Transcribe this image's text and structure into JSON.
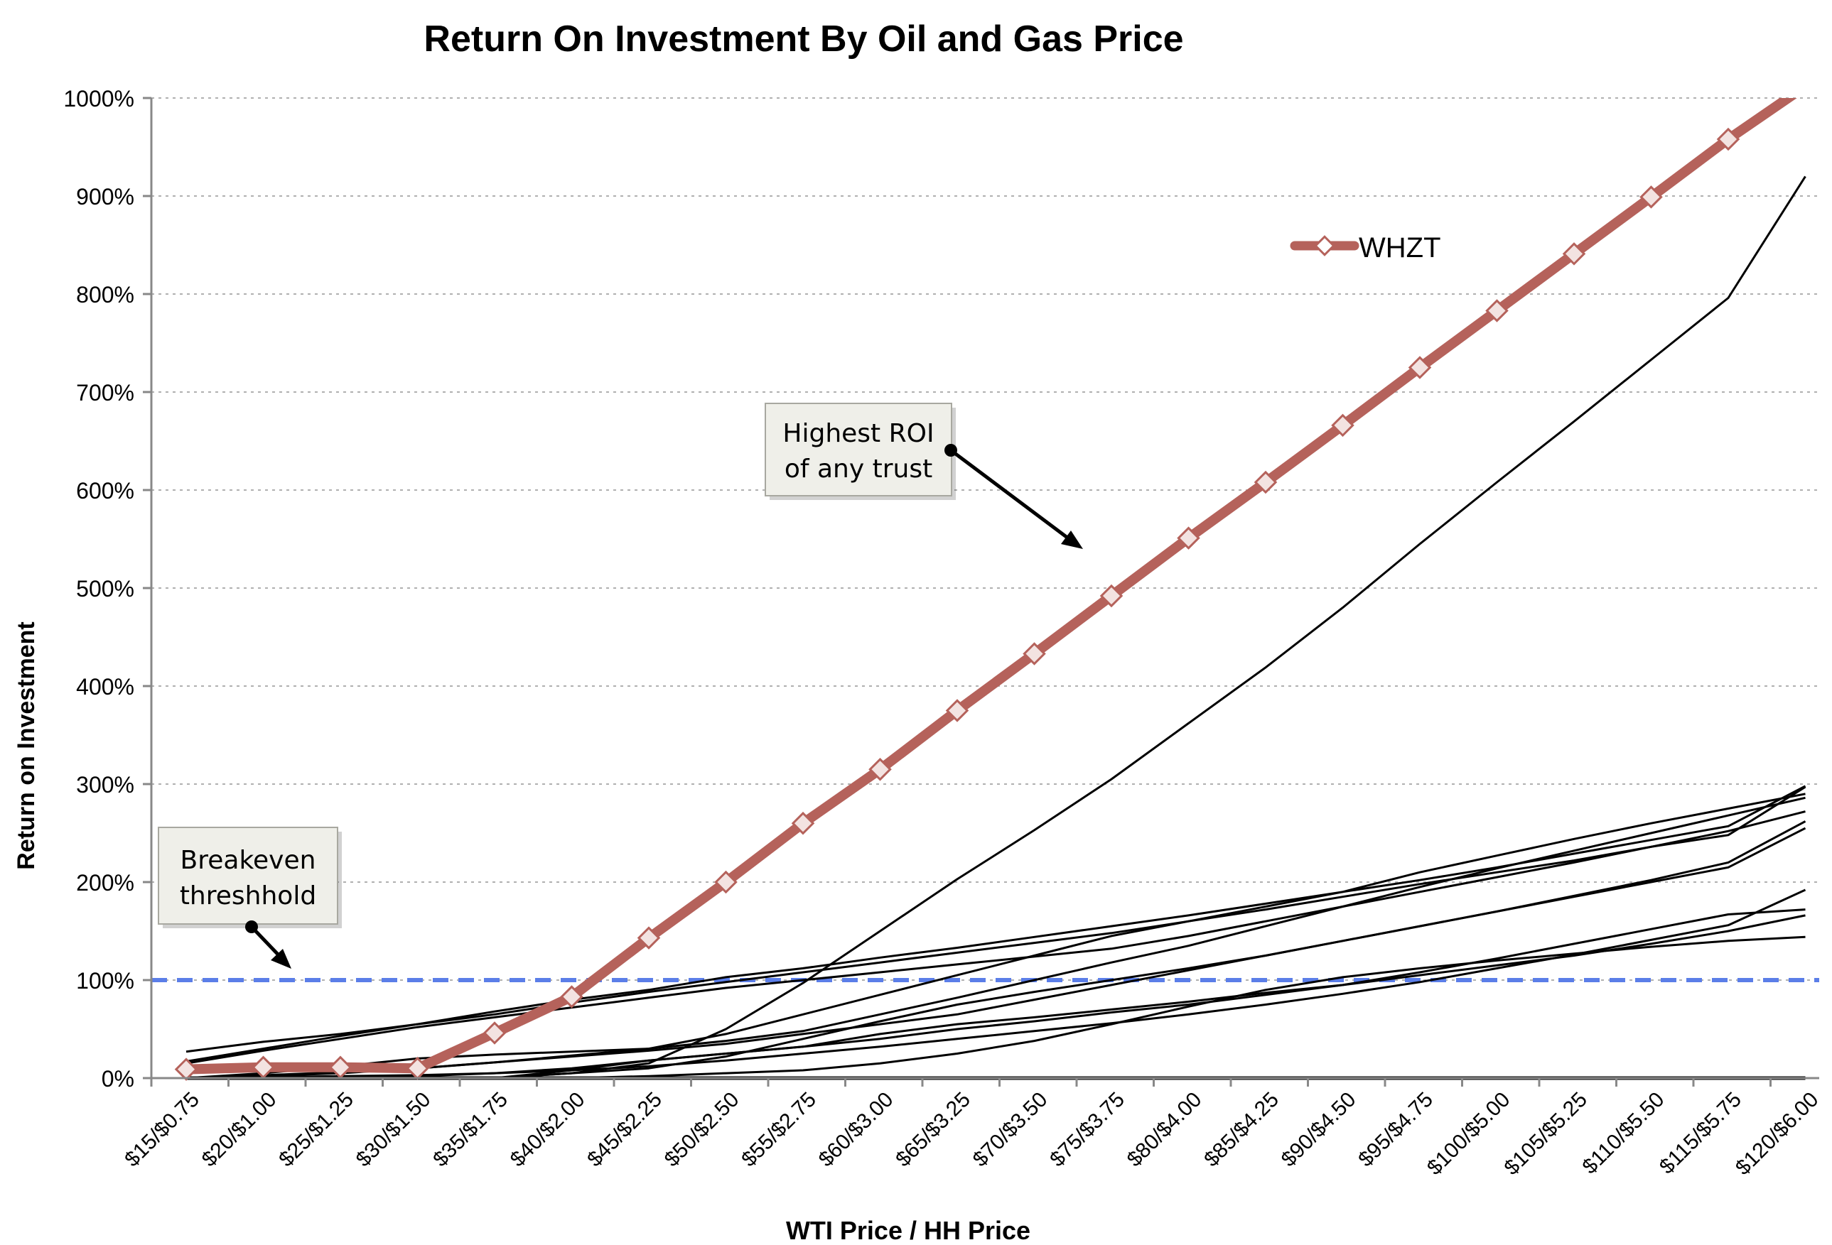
{
  "chart_data": {
    "type": "line",
    "title": "Return On Investment By Oil and Gas Price",
    "xlabel": "WTI Price / HH Price",
    "ylabel": "Return on Investment",
    "categories": [
      "$15/$0.75",
      "$20/$1.00",
      "$25/$1.25",
      "$30/$1.50",
      "$35/$1.75",
      "$40/$2.00",
      "$45/$2.25",
      "$50/$2.50",
      "$55/$2.75",
      "$60/$3.00",
      "$65/$3.25",
      "$70/$3.50",
      "$75/$3.75",
      "$80/$4.00",
      "$85/$4.25",
      "$90/$4.50",
      "$95/$4.75",
      "$100/$5.00",
      "$105/$5.25",
      "$110/$5.50",
      "$115/$5.75",
      "$120/$6.00"
    ],
    "y_ticks": [
      "0%",
      "100%",
      "200%",
      "300%",
      "400%",
      "500%",
      "600%",
      "700%",
      "800%",
      "900%",
      "1000%"
    ],
    "ylim": [
      0,
      1000
    ],
    "grid": true,
    "legend_position": "top-right",
    "highlight_color": "#b5625b",
    "other_series_color": "#000000",
    "threshold_color": "#5b7ee8",
    "breakeven_value": 100,
    "annotations": {
      "highest_roi": [
        "Highest ROI",
        "of any trust"
      ],
      "breakeven": [
        "Breakeven",
        "threshhold"
      ]
    },
    "series": [
      {
        "name": "WHZT",
        "values": [
          9,
          11,
          11,
          10,
          46,
          83,
          143,
          200,
          260,
          315,
          375,
          433,
          492,
          551,
          608,
          666,
          725,
          783,
          841,
          899,
          958,
          1012
        ]
      },
      {
        "values": [
          0,
          0,
          0,
          0,
          0,
          5,
          15,
          50,
          97,
          150,
          203,
          253,
          305,
          362,
          419,
          480,
          545,
          608,
          670,
          733,
          796,
          920
        ]
      },
      {
        "values": [
          27,
          37,
          45,
          55,
          65,
          77,
          88,
          98,
          108,
          118,
          128,
          138,
          148,
          160,
          172,
          185,
          198,
          210,
          222,
          236,
          248,
          297
        ]
      },
      {
        "values": [
          17,
          30,
          43,
          55,
          68,
          80,
          90,
          103,
          112,
          123,
          133,
          144,
          155,
          166,
          178,
          190,
          202,
          215,
          229,
          243,
          257,
          298
        ]
      },
      {
        "values": [
          15,
          28,
          40,
          52,
          62,
          72,
          82,
          92,
          100,
          108,
          116,
          124,
          132,
          145,
          160,
          175,
          190,
          205,
          220,
          236,
          252,
          272
        ]
      },
      {
        "values": [
          0,
          3,
          6,
          10,
          16,
          23,
          30,
          45,
          65,
          85,
          105,
          125,
          145,
          160,
          175,
          190,
          210,
          227,
          244,
          260,
          275,
          290
        ]
      },
      {
        "values": [
          0,
          5,
          12,
          20,
          24,
          27,
          30,
          38,
          48,
          65,
          82,
          100,
          118,
          135,
          155,
          175,
          195,
          214,
          232,
          250,
          268,
          286
        ]
      },
      {
        "values": [
          0,
          2,
          5,
          10,
          16,
          22,
          28,
          35,
          45,
          55,
          65,
          80,
          95,
          110,
          125,
          140,
          155,
          170,
          185,
          200,
          215,
          255
        ]
      },
      {
        "values": [
          0,
          1,
          2,
          3,
          5,
          8,
          12,
          18,
          25,
          32,
          40,
          48,
          56,
          65,
          75,
          86,
          98,
          112,
          126,
          141,
          156,
          192
        ]
      },
      {
        "values": [
          0,
          0,
          0,
          2,
          5,
          10,
          18,
          25,
          32,
          40,
          50,
          58,
          67,
          75,
          85,
          95,
          108,
          122,
          137,
          152,
          167,
          172
        ]
      },
      {
        "values": [
          0,
          0,
          0,
          0,
          0,
          8,
          18,
          25,
          32,
          45,
          55,
          62,
          70,
          78,
          87,
          95,
          105,
          115,
          125,
          137,
          150,
          166
        ]
      },
      {
        "values": [
          0,
          0,
          0,
          0,
          0,
          0,
          2,
          5,
          8,
          15,
          25,
          38,
          55,
          73,
          90,
          103,
          112,
          120,
          127,
          134,
          140,
          144
        ]
      },
      {
        "values": [
          0,
          0,
          0,
          0,
          0,
          5,
          10,
          22,
          40,
          58,
          75,
          88,
          100,
          112,
          125,
          140,
          155,
          170,
          186,
          202,
          220,
          262
        ]
      },
      {
        "values": [
          0,
          0,
          0,
          0,
          0,
          0,
          0,
          0,
          0,
          0,
          0,
          0,
          0,
          0,
          0,
          0,
          0,
          0,
          0,
          0,
          0,
          0
        ]
      }
    ]
  }
}
